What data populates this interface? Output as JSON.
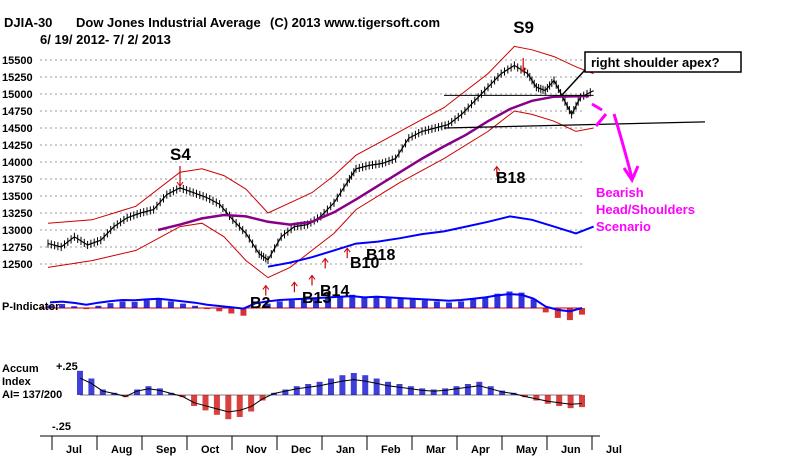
{
  "header": {
    "ticker": "DJIA-30",
    "name": "Dow Jones Industrial Average",
    "copyright": "(C) 2013 www.tigersoft.com",
    "date_range": "6/ 19/ 2012- 7/ 2/ 2013"
  },
  "chart_data": {
    "type": "line",
    "title": "DJIA-30 Dow Jones Industrial Average",
    "subtitle": "6/ 19/ 2012- 7/ 2/ 2013",
    "price_ylim": [
      12500,
      15500
    ],
    "y_ticks": [
      {
        "value": 15500,
        "label": "15500"
      },
      {
        "value": 15250,
        "label": "15250"
      },
      {
        "value": 15000,
        "label": "15000"
      },
      {
        "value": 14750,
        "label": "14750"
      },
      {
        "value": 14500,
        "label": "14500"
      },
      {
        "value": 14250,
        "label": "14250"
      },
      {
        "value": 14000,
        "label": "14000"
      },
      {
        "value": 13750,
        "label": "13750"
      },
      {
        "value": 13500,
        "label": "13500"
      },
      {
        "value": 13250,
        "label": "13250"
      },
      {
        "value": 13000,
        "label": "13000"
      },
      {
        "value": 12750,
        "label": "12750"
      },
      {
        "value": 12500,
        "label": "12500"
      }
    ],
    "months": [
      "Jul",
      "Aug",
      "Sep",
      "Oct",
      "Nov",
      "Dec",
      "Jan",
      "Feb",
      "Mar",
      "Apr",
      "May",
      "Jun",
      "Jul"
    ],
    "series": [
      {
        "name": "DJIA close",
        "color": "#000000",
        "points": [
          [
            0,
            12800
          ],
          [
            0.3,
            12750
          ],
          [
            0.6,
            12900
          ],
          [
            0.9,
            12780
          ],
          [
            1.2,
            12850
          ],
          [
            1.5,
            13050
          ],
          [
            1.8,
            13180
          ],
          [
            2.1,
            13250
          ],
          [
            2.4,
            13300
          ],
          [
            2.7,
            13520
          ],
          [
            3.0,
            13620
          ],
          [
            3.3,
            13550
          ],
          [
            3.6,
            13480
          ],
          [
            3.9,
            13380
          ],
          [
            4.2,
            13150
          ],
          [
            4.5,
            12950
          ],
          [
            4.8,
            12650
          ],
          [
            5.0,
            12560
          ],
          [
            5.3,
            12900
          ],
          [
            5.6,
            13050
          ],
          [
            5.9,
            13080
          ],
          [
            6.2,
            13200
          ],
          [
            6.5,
            13400
          ],
          [
            6.8,
            13700
          ],
          [
            7.0,
            13900
          ],
          [
            7.3,
            13950
          ],
          [
            7.6,
            13980
          ],
          [
            7.9,
            14050
          ],
          [
            8.2,
            14350
          ],
          [
            8.5,
            14450
          ],
          [
            8.8,
            14500
          ],
          [
            9.1,
            14550
          ],
          [
            9.4,
            14700
          ],
          [
            9.7,
            14900
          ],
          [
            10.0,
            15100
          ],
          [
            10.3,
            15300
          ],
          [
            10.6,
            15420
          ],
          [
            10.9,
            15300
          ],
          [
            11.1,
            15100
          ],
          [
            11.3,
            15050
          ],
          [
            11.5,
            15200
          ],
          [
            11.7,
            14950
          ],
          [
            11.9,
            14700
          ],
          [
            12.1,
            14950
          ],
          [
            12.4,
            15050
          ]
        ]
      },
      {
        "name": "Red upper band",
        "color": "#cc0000",
        "points": [
          [
            0,
            13100
          ],
          [
            1,
            13150
          ],
          [
            2,
            13350
          ],
          [
            3,
            13850
          ],
          [
            3.5,
            13900
          ],
          [
            4,
            13800
          ],
          [
            4.5,
            13600
          ],
          [
            5,
            13250
          ],
          [
            5.5,
            13400
          ],
          [
            6,
            13550
          ],
          [
            6.5,
            13800
          ],
          [
            7,
            14100
          ],
          [
            8,
            14450
          ],
          [
            9,
            14800
          ],
          [
            10,
            15300
          ],
          [
            10.6,
            15700
          ],
          [
            11,
            15650
          ],
          [
            11.5,
            15550
          ],
          [
            12,
            15400
          ],
          [
            12.4,
            15300
          ]
        ]
      },
      {
        "name": "Red lower band",
        "color": "#cc0000",
        "points": [
          [
            0,
            12450
          ],
          [
            1,
            12550
          ],
          [
            2,
            12700
          ],
          [
            3,
            13050
          ],
          [
            3.5,
            13100
          ],
          [
            4,
            12900
          ],
          [
            4.5,
            12550
          ],
          [
            5,
            12300
          ],
          [
            5.5,
            12450
          ],
          [
            6,
            12700
          ],
          [
            6.5,
            12950
          ],
          [
            7,
            13300
          ],
          [
            8,
            13700
          ],
          [
            9,
            14050
          ],
          [
            10,
            14450
          ],
          [
            10.6,
            14750
          ],
          [
            11,
            14700
          ],
          [
            11.5,
            14600
          ],
          [
            12,
            14450
          ],
          [
            12.4,
            14500
          ]
        ]
      },
      {
        "name": "Purple moving average",
        "color": "#880088",
        "points": [
          [
            2.5,
            13000
          ],
          [
            3,
            13080
          ],
          [
            3.5,
            13170
          ],
          [
            4,
            13220
          ],
          [
            4.5,
            13200
          ],
          [
            5,
            13120
          ],
          [
            5.5,
            13080
          ],
          [
            6,
            13120
          ],
          [
            6.5,
            13260
          ],
          [
            7,
            13450
          ],
          [
            7.5,
            13650
          ],
          [
            8,
            13850
          ],
          [
            8.5,
            14050
          ],
          [
            9,
            14230
          ],
          [
            9.5,
            14400
          ],
          [
            10,
            14600
          ],
          [
            10.5,
            14780
          ],
          [
            11,
            14900
          ],
          [
            11.5,
            14960
          ],
          [
            12.3,
            14970
          ]
        ]
      },
      {
        "name": "Blue relative strength",
        "color": "#0000ff",
        "points": [
          [
            5,
            12460
          ],
          [
            5.5,
            12520
          ],
          [
            6,
            12600
          ],
          [
            6.5,
            12700
          ],
          [
            7,
            12800
          ],
          [
            7.5,
            12830
          ],
          [
            8,
            12880
          ],
          [
            8.5,
            12940
          ],
          [
            9,
            12980
          ],
          [
            9.5,
            13050
          ],
          [
            10,
            13120
          ],
          [
            10.5,
            13200
          ],
          [
            11,
            13150
          ],
          [
            11.5,
            13050
          ],
          [
            12,
            12950
          ],
          [
            12.4,
            13050
          ]
        ]
      }
    ],
    "neckline": {
      "from": [
        9.0,
        14500
      ],
      "to": [
        13.0,
        14620
      ]
    },
    "scenario_path": [
      [
        12.3,
        14800
      ],
      [
        12.6,
        14600
      ],
      [
        12.9,
        14250
      ],
      [
        13.2,
        13800
      ]
    ],
    "signals": [
      {
        "label": "S4",
        "type": "sell",
        "month_index": 3.0,
        "price": 13800
      },
      {
        "label": "S9",
        "type": "sell",
        "month_index": 10.8,
        "price": 15600
      },
      {
        "label": "B2",
        "type": "buy",
        "month_index": 4.95,
        "price": 12300
      },
      {
        "label": "B13",
        "type": "buy",
        "month_index": 5.6,
        "price": 12350
      },
      {
        "label": "B14",
        "type": "buy",
        "month_index": 6.0,
        "price": 12450
      },
      {
        "label": "B10",
        "type": "buy",
        "month_index": 6.3,
        "price": 12700
      },
      {
        "label": "B18",
        "type": "buy",
        "month_index": 6.8,
        "price": 12850
      },
      {
        "label": "B18",
        "type": "buy",
        "month_index": 10.2,
        "price": 14050
      }
    ],
    "annotations": {
      "right_shoulder": "right shoulder apex?",
      "scenario": [
        "Bearish",
        "Head/Shoulders",
        "Scenario"
      ]
    },
    "p_indicator": {
      "label": "P-Indicator",
      "values": [
        0.12,
        0.18,
        0.08,
        -0.05,
        0.1,
        0.22,
        0.3,
        0.28,
        0.35,
        0.4,
        0.3,
        0.2,
        0.1,
        -0.05,
        -0.15,
        -0.25,
        -0.35,
        0.05,
        0.2,
        0.3,
        0.35,
        0.4,
        0.45,
        0.5,
        0.55,
        0.6,
        0.5,
        0.55,
        0.5,
        0.45,
        0.4,
        0.35,
        0.3,
        0.25,
        0.3,
        0.4,
        0.5,
        0.65,
        0.75,
        0.7,
        0.4,
        -0.2,
        -0.45,
        -0.55,
        -0.3
      ]
    },
    "accum_index": {
      "label_lines": [
        "Accum",
        "Index"
      ],
      "ai_text": "AI= 137/200",
      "top_label": "+.25",
      "bottom_label": "-.25",
      "values": [
        0.22,
        0.15,
        0.05,
        0.02,
        -0.02,
        0.05,
        0.08,
        0.06,
        0.02,
        -0.02,
        -0.1,
        -0.14,
        -0.18,
        -0.22,
        -0.2,
        -0.15,
        -0.05,
        0.02,
        0.05,
        0.08,
        0.1,
        0.12,
        0.15,
        0.18,
        0.2,
        0.18,
        0.15,
        0.12,
        0.1,
        0.08,
        0.06,
        0.05,
        0.06,
        0.08,
        0.1,
        0.12,
        0.08,
        0.04,
        0.02,
        -0.02,
        -0.05,
        -0.08,
        -0.1,
        -0.12,
        -0.11
      ]
    }
  }
}
